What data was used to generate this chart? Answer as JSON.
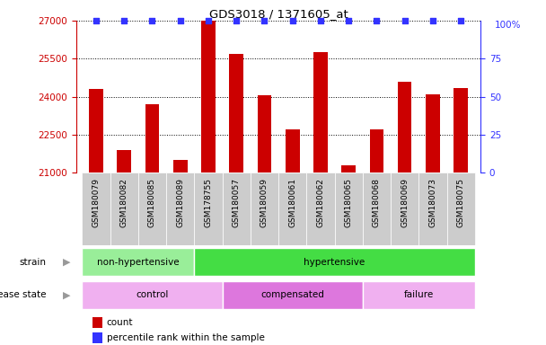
{
  "title": "GDS3018 / 1371605_at",
  "samples": [
    "GSM180079",
    "GSM180082",
    "GSM180085",
    "GSM180089",
    "GSM178755",
    "GSM180057",
    "GSM180059",
    "GSM180061",
    "GSM180062",
    "GSM180065",
    "GSM180068",
    "GSM180069",
    "GSM180073",
    "GSM180075"
  ],
  "counts": [
    24300,
    21900,
    23700,
    21500,
    27000,
    25700,
    24050,
    22700,
    25750,
    21300,
    22700,
    24600,
    24100,
    24350
  ],
  "ylim_left": [
    21000,
    27000
  ],
  "ylim_right": [
    0,
    100
  ],
  "yticks_left": [
    21000,
    22500,
    24000,
    25500,
    27000
  ],
  "yticks_right": [
    0,
    25,
    50,
    75
  ],
  "bar_color": "#cc0000",
  "percentile_color": "#3333ff",
  "background_color": "#ffffff",
  "strain_groups": [
    {
      "label": "non-hypertensive",
      "start": 0,
      "end": 4,
      "color": "#99ee99"
    },
    {
      "label": "hypertensive",
      "start": 4,
      "end": 14,
      "color": "#44dd44"
    }
  ],
  "disease_groups": [
    {
      "label": "control",
      "start": 0,
      "end": 5,
      "color": "#f0a0f0"
    },
    {
      "label": "compensated",
      "start": 5,
      "end": 10,
      "color": "#dd77dd"
    },
    {
      "label": "failure",
      "start": 10,
      "end": 14,
      "color": "#f0a0f0"
    }
  ],
  "legend_items": [
    {
      "label": "count",
      "color": "#cc0000"
    },
    {
      "label": "percentile rank within the sample",
      "color": "#3333ff"
    }
  ],
  "tick_bg_color": "#cccccc",
  "label_color": "#888888"
}
